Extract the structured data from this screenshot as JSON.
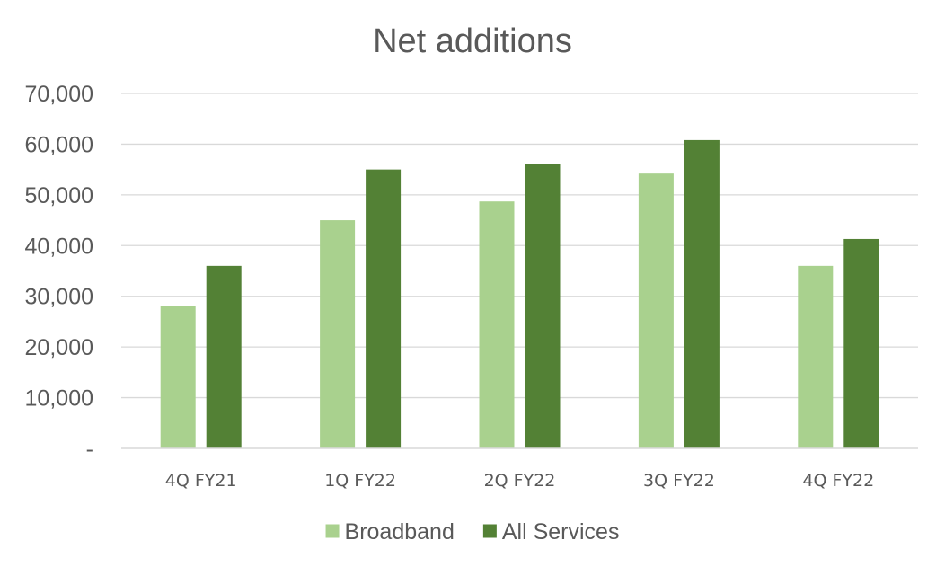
{
  "chart_data": {
    "type": "bar",
    "title": "Net additions",
    "xlabel": "",
    "ylabel": "",
    "categories": [
      "4Q FY21",
      "1Q FY22",
      "2Q FY22",
      "3Q FY22",
      "4Q FY22"
    ],
    "series": [
      {
        "name": "Broadband",
        "color": "#a9d18e",
        "values": [
          28000,
          45000,
          48700,
          54200,
          36000
        ]
      },
      {
        "name": "All Services",
        "color": "#538135",
        "values": [
          36000,
          55000,
          56000,
          60800,
          41300
        ]
      }
    ],
    "ylim": [
      0,
      70000
    ],
    "yticks": [
      0,
      10000,
      20000,
      30000,
      40000,
      50000,
      60000,
      70000
    ],
    "ytick_labels": [
      "-",
      "10,000",
      "20,000",
      "30,000",
      "40,000",
      "50,000",
      "60,000",
      "70,000"
    ],
    "grid": true,
    "legend_position": "bottom"
  }
}
